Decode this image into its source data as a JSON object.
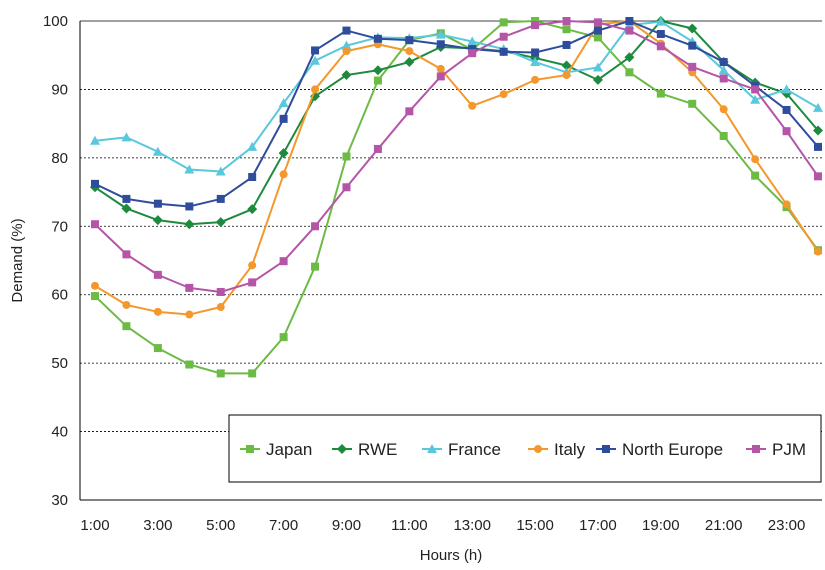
{
  "chart_data": {
    "type": "line",
    "title": "",
    "xlabel": "Hours (h)",
    "ylabel": "Demand (%)",
    "x": [
      1,
      2,
      3,
      4,
      5,
      6,
      7,
      8,
      9,
      10,
      11,
      12,
      13,
      14,
      15,
      16,
      17,
      18,
      19,
      20,
      21,
      22,
      23,
      24
    ],
    "x_tick_labels": [
      {
        "x": 1,
        "label": "1:00"
      },
      {
        "x": 3,
        "label": "3:00"
      },
      {
        "x": 5,
        "label": "5:00"
      },
      {
        "x": 7,
        "label": "7:00"
      },
      {
        "x": 9,
        "label": "9:00"
      },
      {
        "x": 11,
        "label": "11:00"
      },
      {
        "x": 13,
        "label": "13:00"
      },
      {
        "x": 15,
        "label": "15:00"
      },
      {
        "x": 17,
        "label": "17:00"
      },
      {
        "x": 19,
        "label": "19:00"
      },
      {
        "x": 21,
        "label": "21:00"
      },
      {
        "x": 23,
        "label": "23:00"
      }
    ],
    "xlim": [
      1,
      24
    ],
    "ylim": [
      30,
      100
    ],
    "y_ticks": [
      30,
      40,
      50,
      60,
      70,
      80,
      90,
      100
    ],
    "grid": "horizontal dotted",
    "legend_position": "bottom-right, inside plot",
    "series": [
      {
        "name": "Japan",
        "color": "#6cbb45",
        "marker": "square",
        "values": [
          59.8,
          55.4,
          52.2,
          49.8,
          48.5,
          48.5,
          53.8,
          64.1,
          80.2,
          91.3,
          97.2,
          98.2,
          95.8,
          99.8,
          100.0,
          98.8,
          97.6,
          92.5,
          89.4,
          87.9,
          83.2,
          77.4,
          72.8,
          66.5
        ]
      },
      {
        "name": "RWE",
        "color": "#1e8a3e",
        "marker": "diamond",
        "values": [
          75.7,
          72.6,
          70.9,
          70.3,
          70.6,
          72.5,
          80.7,
          89.0,
          92.1,
          92.8,
          94.0,
          96.2,
          96.0,
          95.6,
          94.6,
          93.5,
          91.4,
          94.7,
          100.0,
          98.9,
          94.0,
          91.0,
          89.4,
          84.0
        ]
      },
      {
        "name": "France",
        "color": "#5ac8dc",
        "marker": "triangle",
        "values": [
          82.5,
          83.0,
          80.9,
          78.3,
          78.0,
          81.6,
          88.0,
          94.2,
          96.4,
          97.6,
          97.5,
          98.0,
          97.0,
          95.9,
          94.0,
          92.5,
          93.2,
          99.4,
          99.9,
          97.0,
          92.8,
          88.5,
          90.0,
          87.3
        ]
      },
      {
        "name": "Italy",
        "color": "#f4972d",
        "marker": "circle",
        "values": [
          61.3,
          58.5,
          57.5,
          57.1,
          58.2,
          64.3,
          77.6,
          90.0,
          95.6,
          96.6,
          95.6,
          93.0,
          87.6,
          89.3,
          91.4,
          92.1,
          99.5,
          100.0,
          96.7,
          92.5,
          87.1,
          79.8,
          73.2,
          66.3
        ]
      },
      {
        "name": "North Europe",
        "color": "#2e4d9c",
        "marker": "square",
        "values": [
          76.2,
          74.0,
          73.3,
          72.9,
          74.0,
          77.2,
          85.7,
          95.7,
          98.6,
          97.4,
          97.2,
          96.6,
          95.9,
          95.5,
          95.4,
          96.5,
          98.6,
          100.0,
          98.1,
          96.4,
          94.0,
          90.5,
          87.0,
          81.6
        ]
      },
      {
        "name": "PJM",
        "color": "#b455a8",
        "marker": "square",
        "values": [
          70.3,
          65.9,
          62.9,
          61.0,
          60.4,
          61.8,
          64.9,
          70.0,
          75.7,
          81.3,
          86.8,
          91.9,
          95.3,
          97.7,
          99.4,
          100.0,
          99.8,
          98.6,
          96.3,
          93.3,
          91.6,
          90.0,
          83.9,
          77.3
        ]
      }
    ]
  }
}
